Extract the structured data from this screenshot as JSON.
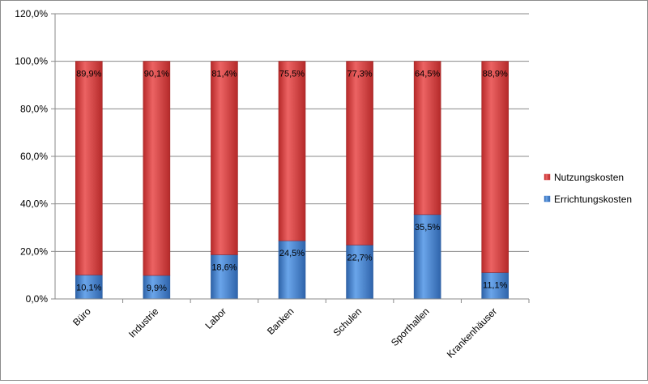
{
  "chart_data": {
    "type": "bar",
    "stacked": true,
    "categories": [
      "Büro",
      "Industrie",
      "Labor",
      "Banken",
      "Schulen",
      "Sporthallen",
      "Krankenhäuser"
    ],
    "series": [
      {
        "name": "Errichtungskosten",
        "color": "#4a86d3",
        "values": [
          10.1,
          9.9,
          18.6,
          24.5,
          22.7,
          35.5,
          11.1
        ],
        "labels": [
          "10,1%",
          "9,9%",
          "18,6%",
          "24,5%",
          "22,7%",
          "35,5%",
          "11,1%"
        ]
      },
      {
        "name": "Nutzungskosten",
        "color": "#d94545",
        "values": [
          89.9,
          90.1,
          81.4,
          75.5,
          77.3,
          64.5,
          88.9
        ],
        "labels": [
          "89,9%",
          "90,1%",
          "81,4%",
          "75,5%",
          "77,3%",
          "64,5%",
          "88,9%"
        ]
      }
    ],
    "ylim": [
      0,
      120
    ],
    "yticks": [
      0,
      20,
      40,
      60,
      80,
      100,
      120
    ],
    "ytick_labels": [
      "0,0%",
      "20,0%",
      "40,0%",
      "60,0%",
      "80,0%",
      "100,0%",
      "120,0%"
    ],
    "grid": true,
    "legend_position": "right",
    "legend_order": [
      "Nutzungskosten",
      "Errichtungskosten"
    ]
  }
}
